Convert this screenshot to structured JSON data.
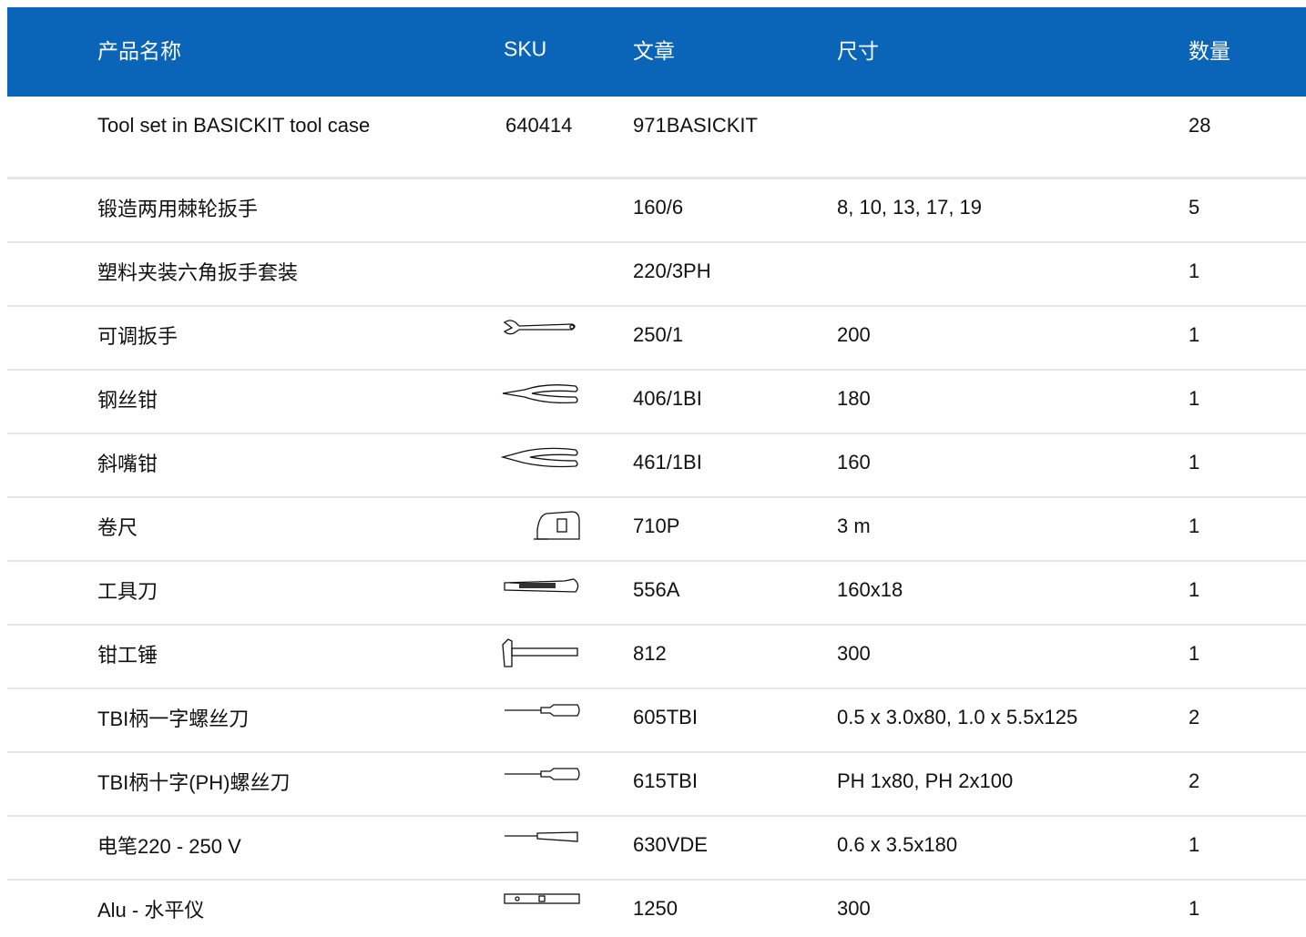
{
  "header": {
    "columns": [
      "产品名称",
      "SKU",
      "文章",
      "尺寸",
      "数量"
    ]
  },
  "table": {
    "rows": [
      {
        "name": "Tool set in BASICKIT tool case",
        "sku": "640414",
        "article": "971BASICKIT",
        "quantity": "28"
      },
      {
        "name": "锻造两用棘轮扳手",
        "article": "160/6",
        "size": "8, 10, 13, 17, 19",
        "quantity": "5"
      },
      {
        "name": "塑料夹装六角扳手套装",
        "article": "220/3PH",
        "quantity": "1"
      },
      {
        "name": "可调扳手",
        "article": "250/1",
        "size": "200",
        "quantity": "1"
      },
      {
        "name": "钢丝钳",
        "article": "406/1BI",
        "size": "180",
        "quantity": "1"
      },
      {
        "name": "斜嘴钳",
        "article": "461/1BI",
        "size": "160",
        "quantity": "1"
      },
      {
        "name": "卷尺",
        "article": "710P",
        "size": "3 m",
        "quantity": "1"
      },
      {
        "name": "工具刀",
        "article": "556A",
        "size": "160x18",
        "quantity": "1"
      },
      {
        "name": "钳工锤",
        "article": "812",
        "size": "300",
        "quantity": "1"
      },
      {
        "name": "TBI柄一字螺丝刀",
        "article": "605TBI",
        "size": "0.5 x 3.0x80, 1.0 x 5.5x125",
        "quantity": "2"
      },
      {
        "name": "TBI柄十字(PH)螺丝刀",
        "article": "615TBI",
        "size": "PH 1x80, PH 2x100",
        "quantity": "2"
      },
      {
        "name": "电笔220 - 250 V",
        "article": "630VDE",
        "size": "0.6 x 3.5x180",
        "quantity": "1"
      },
      {
        "name": "Alu - 水平仪",
        "article": "1250",
        "size": "300",
        "quantity": "1"
      }
    ]
  }
}
